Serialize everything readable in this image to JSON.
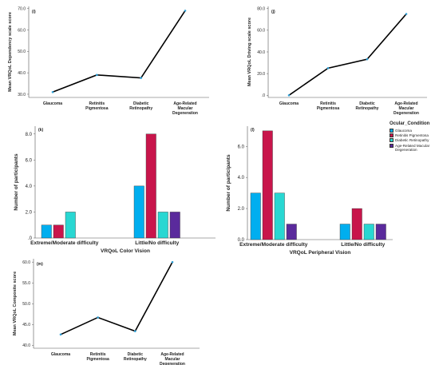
{
  "chart_data": [
    {
      "type": "line",
      "panel_label": "(i)",
      "ylabel": "Mean VRQoL Dependency scale score",
      "categories": [
        "Glaucoma",
        "Retinitis\nPigmentosa",
        "Diabetic\nRetinopathy",
        "Age-Related\nMacular\nDegeneration"
      ],
      "values": [
        31.0,
        39.0,
        37.6,
        69.0
      ],
      "yticks": [
        "30.0",
        "40.0",
        "50.0",
        "60.0",
        "70.0"
      ],
      "ylim": [
        28.5,
        71
      ],
      "line_color": "#000000",
      "marker_color": "#2e9fd6"
    },
    {
      "type": "line",
      "panel_label": "(j)",
      "ylabel": "Mean VRQoL Driving scale score",
      "categories": [
        "Glaucoma",
        "Retinitis\nPigmentosa",
        "Diabetic\nRetinopathy",
        "Age-Related\nMacular\nDegeneration"
      ],
      "values": [
        0.0,
        25.0,
        33.3,
        75.0
      ],
      "yticks": [
        ".0",
        "20.0",
        "40.0",
        "60.0",
        "80.0"
      ],
      "ylim": [
        -2,
        82
      ],
      "line_color": "#000000",
      "marker_color": "#2e9fd6"
    },
    {
      "type": "bar",
      "panel_label": "(k)",
      "xlabel": "VRQoL Color Vision",
      "ylabel": "Number of participants",
      "categories": [
        "Extreme/Moderate difficulty",
        "Little/No difficulty"
      ],
      "series": [
        {
          "name": "Glaucoma",
          "values": [
            1,
            4
          ]
        },
        {
          "name": "Retinitis Pigmentosa",
          "values": [
            1,
            8
          ]
        },
        {
          "name": "Diabetic Retinopathy",
          "values": [
            2,
            2
          ]
        },
        {
          "name": "Age-Related Macular Degeneration",
          "values": [
            null,
            2
          ]
        }
      ],
      "yticks": [
        ".0",
        "2.0",
        "4.0",
        "6.0",
        "8.0"
      ],
      "ylim": [
        0,
        8.6
      ]
    },
    {
      "type": "bar",
      "panel_label": "(l)",
      "xlabel": "VRQoL Peripheral Vision",
      "ylabel": "Number of participants",
      "categories": [
        "Extreme/Moderate difficulty",
        "Little/No difficulty"
      ],
      "series": [
        {
          "name": "Glaucoma",
          "values": [
            3,
            1
          ]
        },
        {
          "name": "Retinitis Pigmentosa",
          "values": [
            7,
            2
          ]
        },
        {
          "name": "Diabetic Retinopathy",
          "values": [
            3,
            1
          ]
        },
        {
          "name": "Age-Related Macular Degeneration",
          "values": [
            1,
            1
          ]
        }
      ],
      "yticks": [
        "0.0",
        "2.0",
        "4.0",
        "6.0"
      ],
      "ylim": [
        0,
        7.3
      ]
    },
    {
      "type": "line",
      "panel_label": "(m)",
      "ylabel": "Mean VRQoL Composite score",
      "categories": [
        "Glaucoma",
        "Retinitis\nPigmentosa",
        "Diabetic\nRetinopathy",
        "Age-Related\nMacular\nDegeneration"
      ],
      "values": [
        42.6,
        46.7,
        43.4,
        60.0
      ],
      "yticks": [
        "40.0",
        "45.0",
        "50.0",
        "55.0",
        "60.0"
      ],
      "ylim": [
        39.3,
        60.8
      ],
      "line_color": "#000000",
      "marker_color": "#2e9fd6"
    }
  ],
  "legend": {
    "title": "Ocular_Condition",
    "items": [
      {
        "label": "Glaucoma",
        "color": "#00aeef"
      },
      {
        "label": "Retinitis Pigmentosa",
        "color": "#c8154b"
      },
      {
        "label": "Diabetic Retinopathy",
        "color": "#28d7d2"
      },
      {
        "label": "Age-Related Macular Degeneration",
        "color": "#5a2a9c"
      }
    ]
  }
}
